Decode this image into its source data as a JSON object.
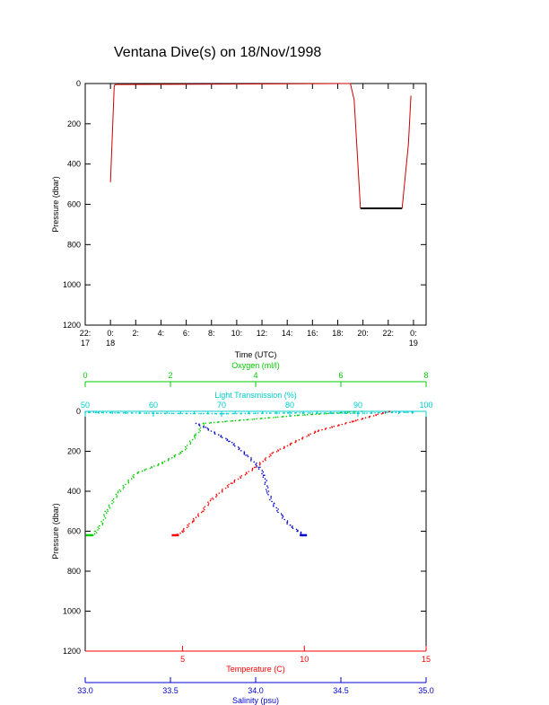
{
  "title": "Ventana Dive(s) on 18/Nov/1998",
  "colors": {
    "axis": "#000000",
    "depth_trace": "#cc0000",
    "bottom_segment": "#000000",
    "oxygen": "#00cc00",
    "transmission": "#00cccc",
    "temperature": "#ff0000",
    "salinity": "#0000cc"
  },
  "chart_data": [
    {
      "type": "line",
      "title": "Ventana Dive(s) on 18/Nov/1998",
      "xlabel": "Time (UTC)",
      "ylabel": "Pressure (dbar)",
      "xlim": [
        -2,
        25
      ],
      "ylim": [
        1200,
        0
      ],
      "yticks": [
        "0",
        "200",
        "400",
        "600",
        "800",
        "1000",
        "1200"
      ],
      "xticks": [
        {
          "value": -2,
          "label": "22:",
          "sub": "17"
        },
        {
          "value": 0,
          "label": "0:",
          "sub": "18"
        },
        {
          "value": 2,
          "label": "2:",
          "sub": ""
        },
        {
          "value": 4,
          "label": "4:",
          "sub": ""
        },
        {
          "value": 6,
          "label": "6:",
          "sub": ""
        },
        {
          "value": 8,
          "label": "8:",
          "sub": ""
        },
        {
          "value": 10,
          "label": "10:",
          "sub": ""
        },
        {
          "value": 12,
          "label": "12:",
          "sub": ""
        },
        {
          "value": 14,
          "label": "14:",
          "sub": ""
        },
        {
          "value": 16,
          "label": "16:",
          "sub": ""
        },
        {
          "value": 18,
          "label": "18:",
          "sub": ""
        },
        {
          "value": 20,
          "label": "20:",
          "sub": ""
        },
        {
          "value": 22,
          "label": "22:",
          "sub": ""
        },
        {
          "value": 24,
          "label": "0:",
          "sub": "19"
        }
      ],
      "series": [
        {
          "x": [
            0.0,
            0.3,
            0.4,
            19.0,
            19.3,
            19.8
          ],
          "y": [
            490,
            10,
            5,
            0,
            80,
            620
          ]
        },
        {
          "x": [
            19.8,
            23.1
          ],
          "y": [
            620,
            620
          ]
        },
        {
          "x": [
            23.1,
            23.6,
            23.8
          ],
          "y": [
            620,
            300,
            60
          ]
        }
      ]
    },
    {
      "type": "scatter",
      "ylabel": "Pressure (dbar)",
      "ylim": [
        1200,
        0
      ],
      "yticks": [
        "0",
        "200",
        "400",
        "600",
        "800",
        "1000",
        "1200"
      ],
      "axes": [
        {
          "name": "Oxygen (ml/l)",
          "position": "top",
          "xlim": [
            0,
            8
          ],
          "ticks": [
            "0",
            "2",
            "4",
            "6",
            "8"
          ],
          "x": [
            6.5,
            5.0,
            2.8,
            2.6,
            2.3,
            1.8,
            1.2,
            0.8,
            0.5,
            0.4,
            0.25,
            0.2,
            0.1
          ],
          "y": [
            0,
            20,
            60,
            120,
            200,
            260,
            310,
            400,
            500,
            560,
            600,
            620,
            620
          ]
        },
        {
          "name": "Light Transmission (%)",
          "position": "top",
          "xlim": [
            50,
            100
          ],
          "ticks": [
            "50",
            "60",
            "70",
            "80",
            "90",
            "100"
          ],
          "x": [
            50,
            60,
            70,
            80,
            90,
            95,
            98
          ],
          "y": [
            5,
            10,
            12,
            8,
            10,
            6,
            5
          ]
        },
        {
          "name": "Temperature (C)",
          "position": "bottom",
          "xlim": [
            1,
            15
          ],
          "ticks": [
            "5",
            "10",
            "15"
          ],
          "x": [
            13.5,
            12.0,
            10.5,
            9.5,
            8.7,
            8.0,
            7.0,
            6.2,
            5.8,
            5.4,
            5.0,
            4.8,
            4.7
          ],
          "y": [
            0,
            50,
            100,
            160,
            210,
            280,
            360,
            440,
            500,
            550,
            600,
            620,
            620
          ]
        },
        {
          "name": "Salinity (psu)",
          "position": "bottom",
          "xlim": [
            33.0,
            35.0
          ],
          "ticks": [
            "33.0",
            "33.5",
            "34.0",
            "34.5",
            "35.0"
          ],
          "x": [
            33.65,
            33.7,
            33.85,
            33.95,
            34.02,
            34.05,
            34.07,
            34.1,
            34.15,
            34.2,
            34.25,
            34.28
          ],
          "y": [
            60,
            80,
            150,
            220,
            280,
            320,
            400,
            460,
            520,
            570,
            600,
            620
          ]
        }
      ]
    }
  ]
}
